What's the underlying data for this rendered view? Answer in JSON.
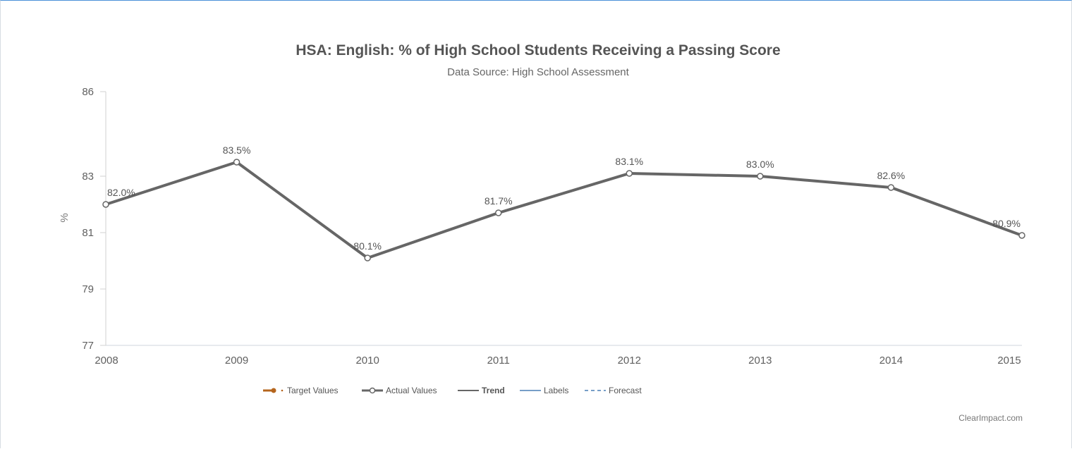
{
  "chart_data": {
    "type": "line",
    "title": "HSA: English: % of High School Students Receiving a Passing Score",
    "subtitle": "Data Source: High School Assessment",
    "ylabel": "%",
    "xlabel": "",
    "ylim": [
      77,
      86
    ],
    "yticks": [
      77,
      79,
      81,
      83,
      86
    ],
    "categories": [
      "2008",
      "2009",
      "2010",
      "2011",
      "2012",
      "2013",
      "2014",
      "2015"
    ],
    "series": [
      {
        "name": "Actual Values",
        "values": [
          82.0,
          83.5,
          80.1,
          81.7,
          83.1,
          83.0,
          82.6,
          80.9
        ],
        "labels": [
          "82.0%",
          "83.5%",
          "80.1%",
          "81.7%",
          "83.1%",
          "83.0%",
          "82.6%",
          "80.9%"
        ],
        "color": "#666666"
      }
    ],
    "legend": {
      "placement": "bottom-center",
      "items": [
        {
          "label": "Target Values",
          "symbol": "line-dot",
          "color": "#b5651d"
        },
        {
          "label": "Actual Values",
          "symbol": "line-circle",
          "color": "#666666"
        },
        {
          "label": "Trend",
          "symbol": "line",
          "color": "#333333"
        },
        {
          "label": "Labels",
          "symbol": "line",
          "color": "#4a7fb5"
        },
        {
          "label": "Forecast",
          "symbol": "dashed",
          "color": "#4a7fb5"
        }
      ]
    },
    "grid": false,
    "credit": "ClearImpact.com"
  }
}
